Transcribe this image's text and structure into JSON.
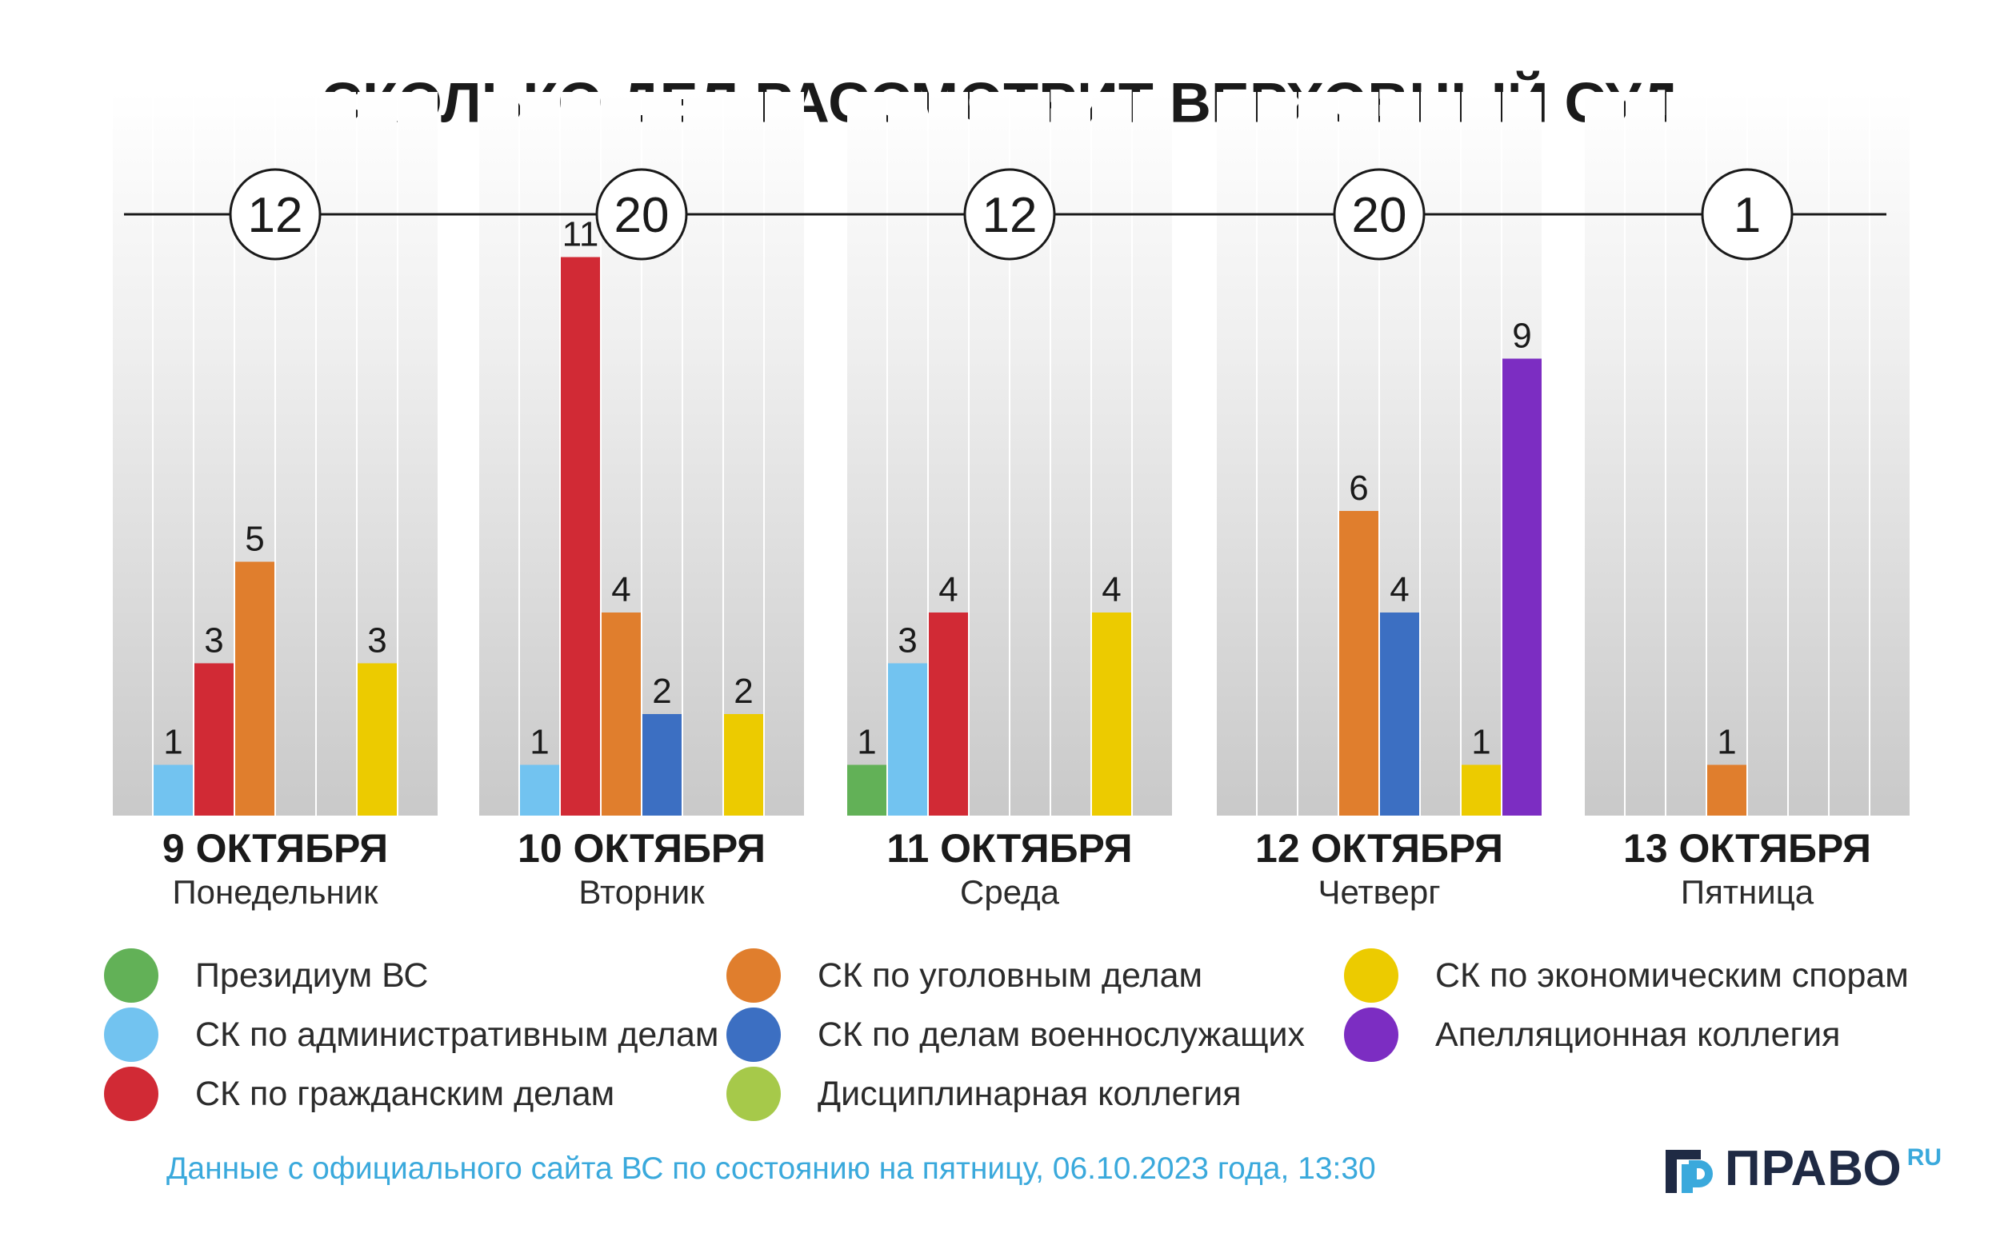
{
  "chart_data": {
    "type": "bar",
    "title": "СКОЛЬКО ДЕЛ РАССМОТРИТ ВЕРХОВНЫЙ СУД",
    "categories": [
      {
        "date": "9 ОКТЯБРЯ",
        "weekday": "Понедельник",
        "total": "12"
      },
      {
        "date": "10 ОКТЯБРЯ",
        "weekday": "Вторник",
        "total": "20"
      },
      {
        "date": "11 ОКТЯБРЯ",
        "weekday": "Среда",
        "total": "12"
      },
      {
        "date": "12 ОКТЯБРЯ",
        "weekday": "Четверг",
        "total": "20"
      },
      {
        "date": "13 ОКТЯБРЯ",
        "weekday": "Пятница",
        "total": "1"
      }
    ],
    "series": [
      {
        "name": "Президиум ВС",
        "color": "#62b157",
        "values": [
          0,
          0,
          1,
          0,
          0
        ]
      },
      {
        "name": "СК по административным делам",
        "color": "#72c3f0",
        "values": [
          1,
          1,
          3,
          0,
          0
        ]
      },
      {
        "name": "СК по гражданским делам",
        "color": "#d12a35",
        "values": [
          3,
          11,
          4,
          0,
          0
        ]
      },
      {
        "name": "СК по уголовным делам",
        "color": "#e07e2d",
        "values": [
          5,
          4,
          0,
          6,
          1
        ]
      },
      {
        "name": "СК по делам военнослужащих",
        "color": "#3c6fc2",
        "values": [
          0,
          2,
          0,
          4,
          0
        ]
      },
      {
        "name": "Дисциплинарная коллегия",
        "color": "#a6c94a",
        "values": [
          0,
          0,
          0,
          0,
          0
        ]
      },
      {
        "name": "СК по экономическим спорам",
        "color": "#eccb00",
        "values": [
          3,
          2,
          4,
          1,
          0
        ]
      },
      {
        "name": "Апелляционная коллегия",
        "color": "#7c2dc2",
        "values": [
          0,
          0,
          0,
          9,
          0
        ]
      }
    ],
    "ylim": [
      0,
      11
    ]
  },
  "legend_order": [
    0,
    1,
    2,
    3,
    4,
    5,
    6,
    7
  ],
  "footnote": "Данные с официального сайта ВС по состоянию на пятницу, 06.10.2023 года, 13:30",
  "brand": {
    "name": "ПРАВО",
    "sup": "RU",
    "color": "#1f2a44",
    "accent": "#3aa9dc"
  },
  "colors": {
    "text": "#1a1a1a",
    "footnote": "#3aa9dc",
    "line": "#1a1a1a"
  }
}
